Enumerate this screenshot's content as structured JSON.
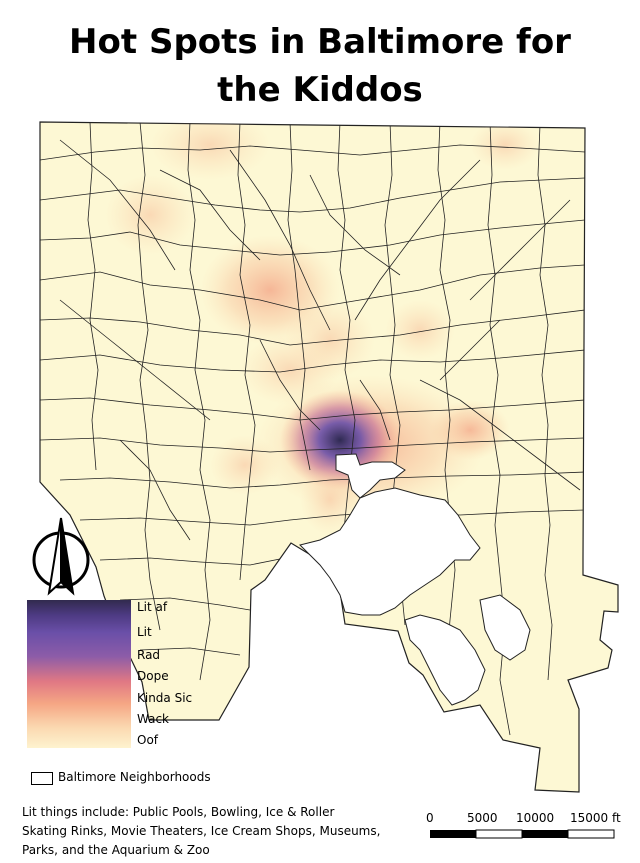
{
  "title_line1": "Hot Spots in Baltimore for",
  "title_line2": "the Kiddos",
  "legend": {
    "classes": [
      "Lit af",
      "Lit",
      "Rad",
      "Dope",
      "Kinda Sic",
      "Wack",
      "Oof"
    ],
    "ramp_colors": [
      "#312a4e",
      "#4d3a82",
      "#6a4fa8",
      "#8c5ca8",
      "#e07884",
      "#f5a684",
      "#fbd8b0",
      "#fef3cf"
    ],
    "boundary_label": "Baltimore Neighborhoods"
  },
  "note": "Lit things include: Public Pools, Bowling, Ice & Roller Skating Rinks, Movie Theaters, Ice Cream Shops, Museums, Parks, and the Aquarium & Zoo",
  "scale_bar": {
    "ticks": [
      "0",
      "5000",
      "10000",
      "15000 ft"
    ]
  },
  "colors": {
    "background_fill": "#fdf8d4",
    "boundary": "#222222",
    "water": "#ffffff"
  },
  "icons": [
    "north-arrow-icon"
  ]
}
